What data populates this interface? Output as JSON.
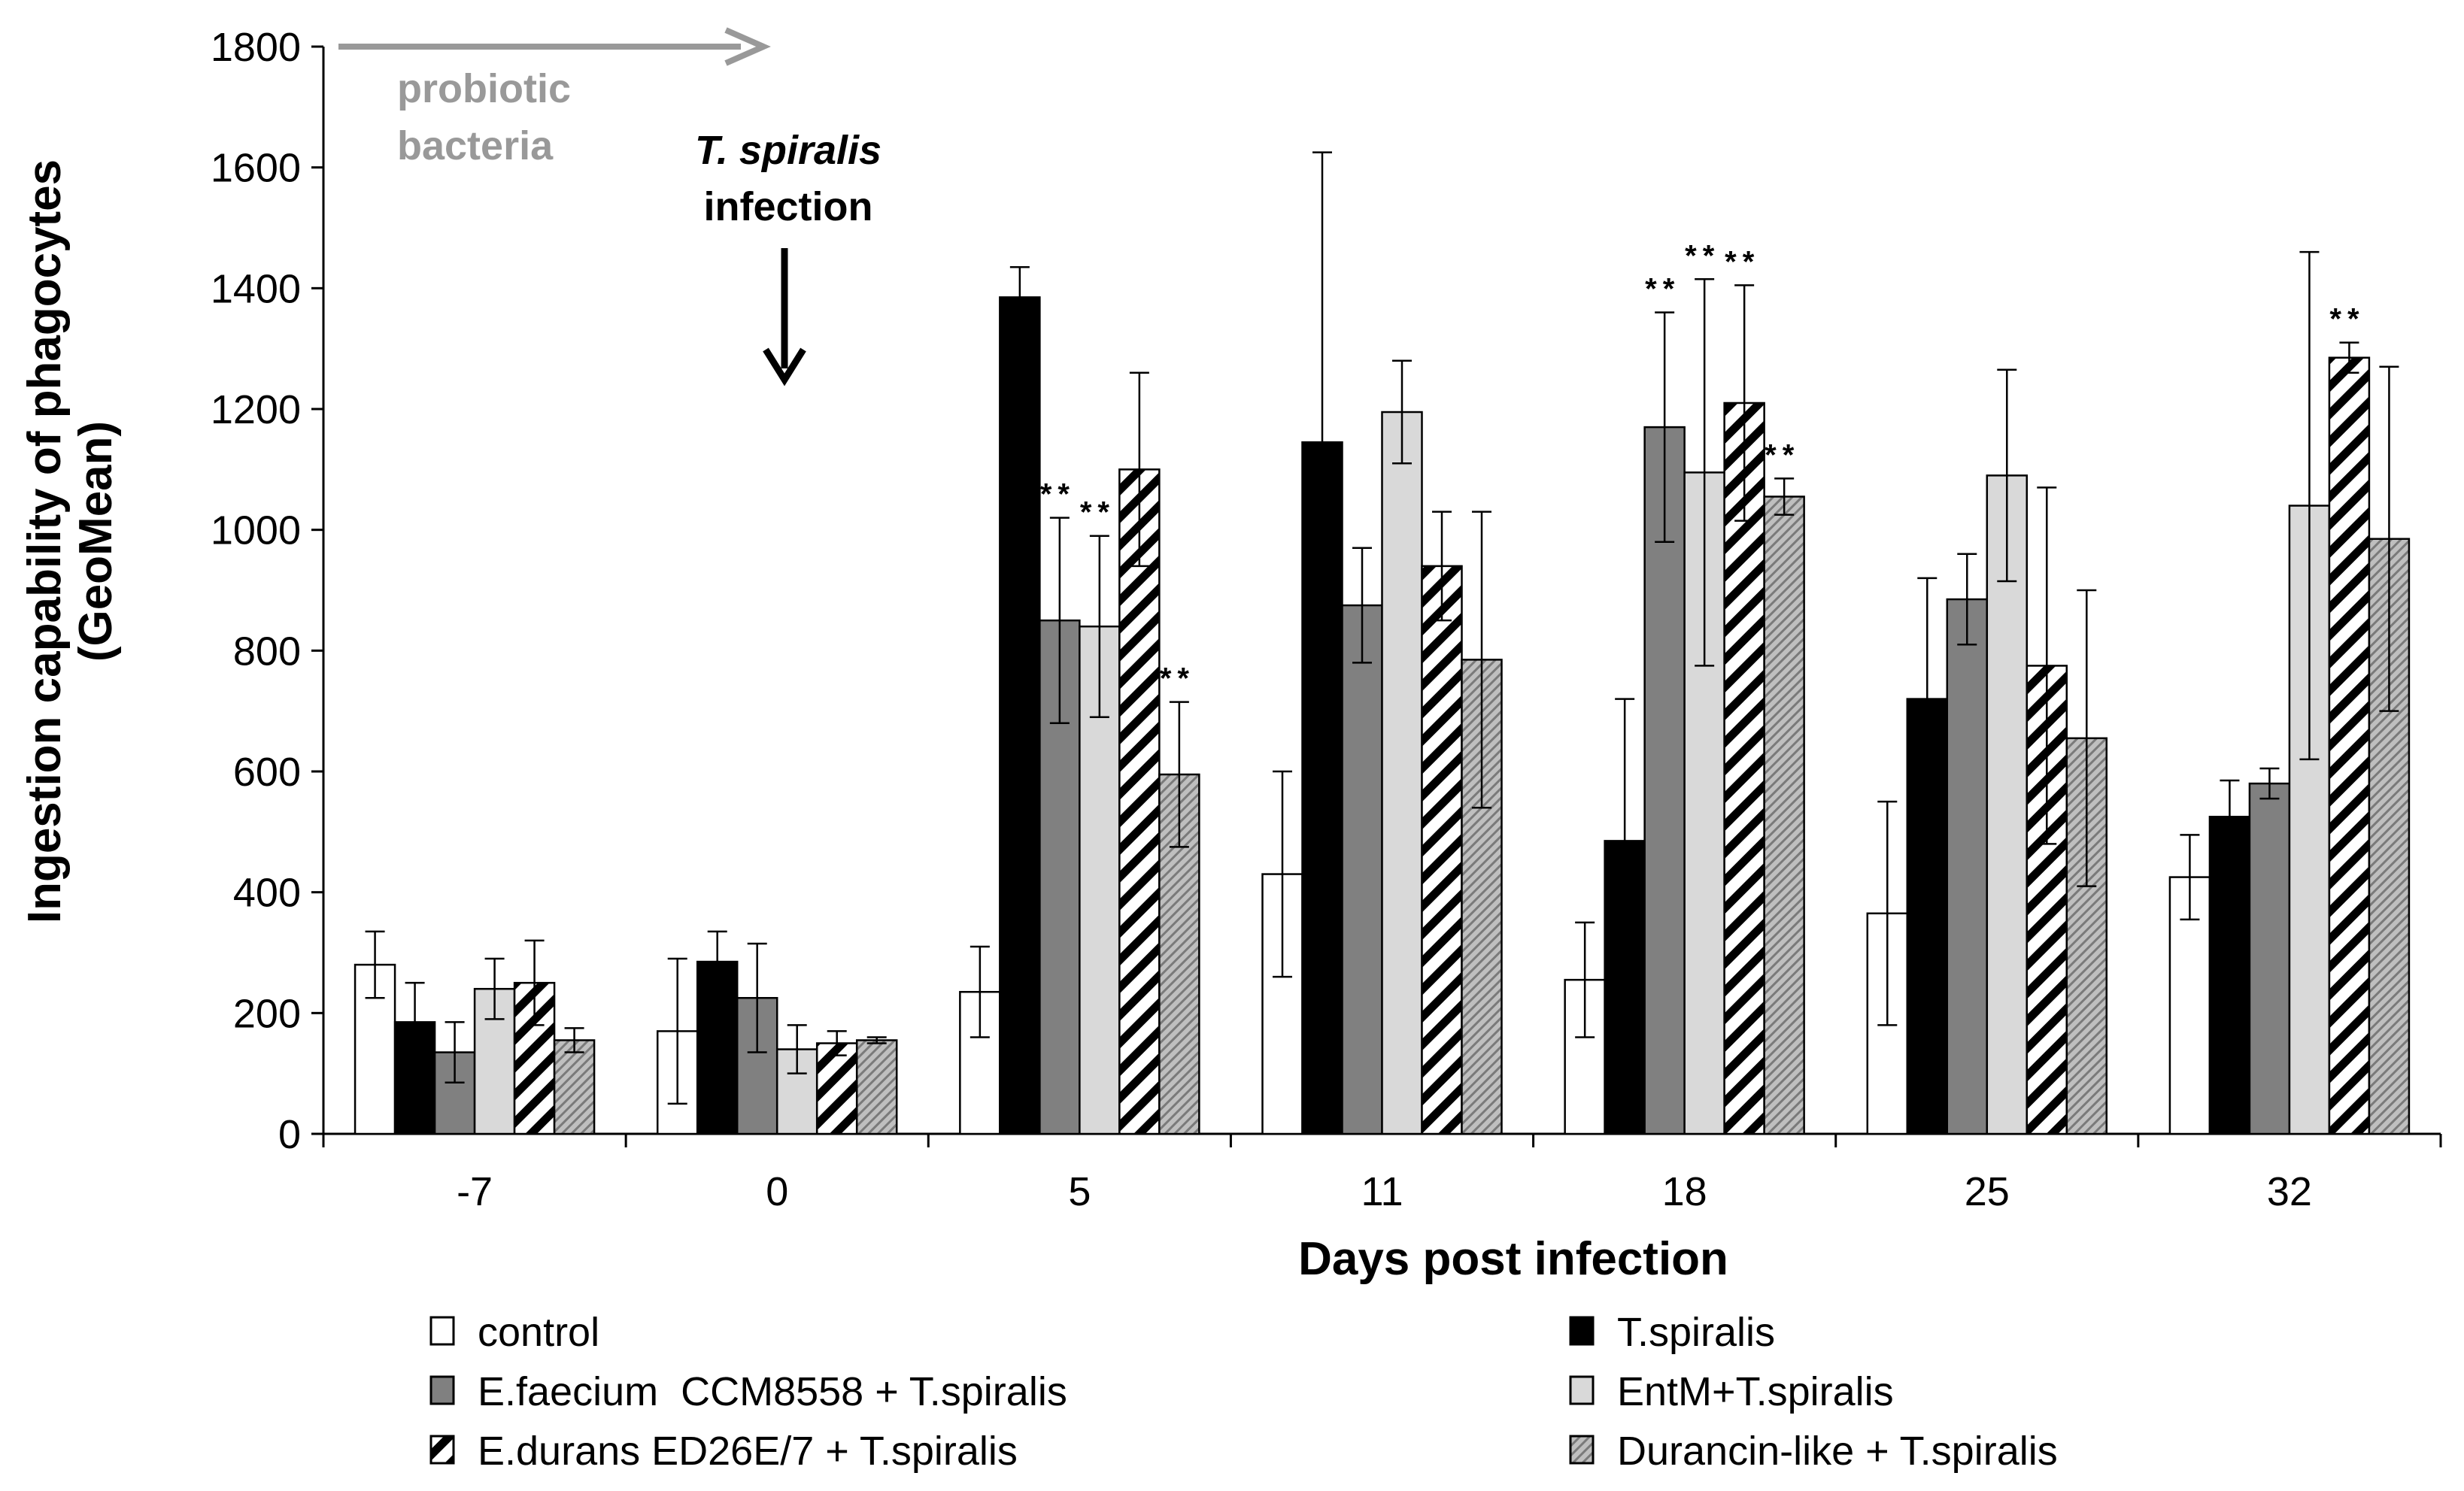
{
  "chart_data": {
    "type": "bar",
    "title": "",
    "xlabel": "Days post infection",
    "ylabel_line1": "Ingestion capability of phagocytes",
    "ylabel_line2": "(GeoMean)",
    "ylim": [
      0,
      1800
    ],
    "yticks": [
      0,
      200,
      400,
      600,
      800,
      1000,
      1200,
      1400,
      1600,
      1800
    ],
    "ytick_labels": [
      "0",
      "200",
      "400",
      "600",
      "800",
      "1000",
      "1200",
      "1400",
      "1600",
      "1800"
    ],
    "categories": [
      "-7",
      "0",
      "5",
      "11",
      "18",
      "25",
      "32"
    ],
    "series": [
      {
        "name": "control",
        "fill": "#ffffff",
        "pattern": "none",
        "values": [
          280,
          170,
          235,
          430,
          255,
          365,
          425
        ],
        "errors": [
          55,
          120,
          75,
          170,
          95,
          185,
          70
        ]
      },
      {
        "name": "T.spiralis",
        "fill": "#000000",
        "pattern": "none",
        "values": [
          185,
          285,
          1385,
          1145,
          485,
          720,
          525
        ],
        "errors": [
          65,
          50,
          50,
          480,
          235,
          200,
          60
        ]
      },
      {
        "name": "E.faecium  CCM8558 + T.spiralis",
        "fill": "#808080",
        "pattern": "none",
        "values": [
          135,
          225,
          850,
          875,
          1170,
          885,
          580
        ],
        "errors": [
          50,
          90,
          170,
          95,
          190,
          75,
          25
        ]
      },
      {
        "name": "EntM+T.spiralis",
        "fill": "#d9d9d9",
        "pattern": "none",
        "values": [
          240,
          140,
          840,
          1195,
          1095,
          1090,
          1040
        ],
        "errors": [
          50,
          40,
          150,
          85,
          320,
          175,
          420
        ]
      },
      {
        "name": "E.durans ED26E/7 + T.spiralis",
        "fill": "#ffffff",
        "pattern": "wide-diagonal",
        "values": [
          250,
          150,
          1100,
          940,
          1210,
          775,
          1285
        ],
        "errors": [
          70,
          20,
          160,
          90,
          195,
          295,
          25
        ]
      },
      {
        "name": "Durancin-like + T.spiralis",
        "fill": "#bfbfbf",
        "pattern": "fine-diagonal",
        "values": [
          155,
          155,
          595,
          785,
          1055,
          655,
          985
        ],
        "errors": [
          20,
          5,
          120,
          245,
          30,
          245,
          285
        ]
      }
    ],
    "significance": [
      {
        "category": "5",
        "series": 2,
        "label": "**"
      },
      {
        "category": "5",
        "series": 3,
        "label": "**"
      },
      {
        "category": "5",
        "series": 5,
        "label": "**"
      },
      {
        "category": "18",
        "series": 2,
        "label": "**"
      },
      {
        "category": "18",
        "series": 3,
        "label": "**"
      },
      {
        "category": "18",
        "series": 4,
        "label": "**"
      },
      {
        "category": "18",
        "series": 5,
        "label": "**"
      },
      {
        "category": "32",
        "series": 4,
        "label": "**"
      }
    ],
    "annotations": {
      "probiotic_line1": "probiotic",
      "probiotic_line2": "bacteria",
      "infection_line1": "T. spiralis",
      "infection_line2": "infection"
    },
    "legend_position": "bottom"
  },
  "colors": {
    "axis": "#000000",
    "annotation_gray": "#999999",
    "error_bar": "#000000"
  }
}
